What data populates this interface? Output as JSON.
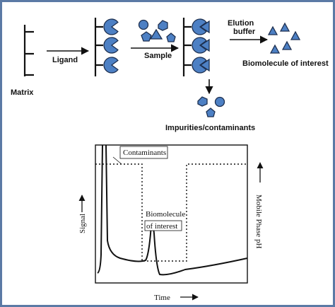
{
  "process": {
    "matrix": "Matrix",
    "ligand": "Ligand",
    "sample": "Sample",
    "elution": [
      "Elution",
      "buffer"
    ],
    "product": "Biomolecule of interest",
    "impurities": "Impurities/contaminants"
  },
  "chromatogram": {
    "contaminants": "Contaminants",
    "biomolecule": [
      "Biomolecule",
      "of interest"
    ],
    "y_label": "Signal",
    "x_label": "Time",
    "y2_label": "Mobile Phase pH"
  }
}
